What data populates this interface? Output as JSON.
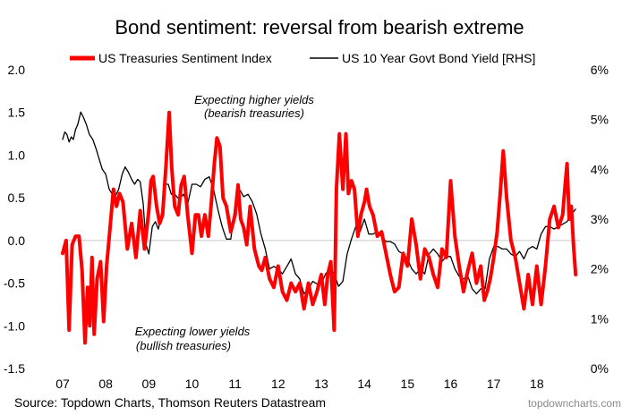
{
  "chart_data": {
    "type": "line",
    "title": "Bond sentiment: reversal from bearish extreme",
    "source": "Source: Topdown Charts, Thomson Reuters Datastream",
    "brand": "topdowncharts.com",
    "legend_position": "top",
    "grid": false,
    "xlim": [
      2007.0,
      2019.0
    ],
    "x_ticks": [
      {
        "label": "07",
        "x": 2007
      },
      {
        "label": "08",
        "x": 2008
      },
      {
        "label": "09",
        "x": 2009
      },
      {
        "label": "10",
        "x": 2010
      },
      {
        "label": "11",
        "x": 2011
      },
      {
        "label": "12",
        "x": 2012
      },
      {
        "label": "13",
        "x": 2013
      },
      {
        "label": "14",
        "x": 2014
      },
      {
        "label": "15",
        "x": 2015
      },
      {
        "label": "16",
        "x": 2016
      },
      {
        "label": "17",
        "x": 2017
      },
      {
        "label": "18",
        "x": 2018
      }
    ],
    "left_axis": {
      "ylim": [
        -1.5,
        2.0
      ],
      "ticks": [
        {
          "label": "2.0",
          "v": 2.0
        },
        {
          "label": "1.5",
          "v": 1.5
        },
        {
          "label": "1.0",
          "v": 1.0
        },
        {
          "label": "0.5",
          "v": 0.5
        },
        {
          "label": "0.0",
          "v": 0.0
        },
        {
          "label": "-0.5",
          "v": -0.5
        },
        {
          "label": "-1.0",
          "v": -1.0
        },
        {
          "label": "-1.5",
          "v": -1.5
        }
      ]
    },
    "right_axis": {
      "ylim": [
        0,
        6
      ],
      "ticks": [
        {
          "label": "6%",
          "v": 6
        },
        {
          "label": "5%",
          "v": 5
        },
        {
          "label": "4%",
          "v": 4
        },
        {
          "label": "3%",
          "v": 3
        },
        {
          "label": "2%",
          "v": 2
        },
        {
          "label": "1%",
          "v": 1
        },
        {
          "label": "0%",
          "v": 0
        }
      ]
    },
    "annotations": [
      {
        "line1": "Expecting higher yields",
        "line2": "(bearish treasuries)"
      },
      {
        "line1": "Expecting lower yields",
        "line2": "(bullish treasuries)"
      }
    ],
    "series": [
      {
        "name": "US Treasuries Sentiment Index",
        "axis": "left",
        "color": "#ff0000",
        "x": [
          2007.0,
          2007.08,
          2007.15,
          2007.22,
          2007.3,
          2007.38,
          2007.45,
          2007.52,
          2007.58,
          2007.63,
          2007.68,
          2007.73,
          2007.8,
          2007.88,
          2007.95,
          2008.02,
          2008.1,
          2008.18,
          2008.25,
          2008.32,
          2008.4,
          2008.5,
          2008.6,
          2008.7,
          2008.8,
          2008.9,
          2009.0,
          2009.05,
          2009.1,
          2009.18,
          2009.25,
          2009.32,
          2009.4,
          2009.47,
          2009.53,
          2009.6,
          2009.68,
          2009.75,
          2009.82,
          2009.9,
          2010.0,
          2010.08,
          2010.15,
          2010.22,
          2010.3,
          2010.38,
          2010.45,
          2010.52,
          2010.58,
          2010.65,
          2010.72,
          2010.8,
          2010.9,
          2011.0,
          2011.07,
          2011.13,
          2011.2,
          2011.27,
          2011.35,
          2011.45,
          2011.55,
          2011.62,
          2011.7,
          2011.8,
          2011.9,
          2012.0,
          2012.1,
          2012.2,
          2012.3,
          2012.4,
          2012.5,
          2012.6,
          2012.7,
          2012.8,
          2012.9,
          2013.0,
          2013.08,
          2013.15,
          2013.22,
          2013.3,
          2013.35,
          2013.42,
          2013.5,
          2013.57,
          2013.63,
          2013.7,
          2013.77,
          2013.85,
          2013.92,
          2014.0,
          2014.05,
          2014.12,
          2014.2,
          2014.3,
          2014.4,
          2014.5,
          2014.6,
          2014.7,
          2014.8,
          2014.9,
          2015.0,
          2015.1,
          2015.2,
          2015.3,
          2015.4,
          2015.5,
          2015.6,
          2015.7,
          2015.8,
          2015.9,
          2016.0,
          2016.1,
          2016.2,
          2016.3,
          2016.4,
          2016.5,
          2016.6,
          2016.7,
          2016.78,
          2016.85,
          2016.92,
          2017.0,
          2017.08,
          2017.15,
          2017.22,
          2017.3,
          2017.4,
          2017.5,
          2017.6,
          2017.7,
          2017.8,
          2017.9,
          2018.0,
          2018.1,
          2018.2,
          2018.3,
          2018.4,
          2018.5,
          2018.6,
          2018.65,
          2018.7,
          2018.75,
          2018.8,
          2018.85,
          2018.9
        ],
        "values": [
          -0.15,
          0.0,
          -1.05,
          -0.05,
          0.05,
          0.05,
          -0.35,
          -1.2,
          -0.55,
          -1.0,
          -0.2,
          -1.1,
          -0.45,
          -0.25,
          -0.95,
          -0.3,
          0.15,
          0.6,
          0.4,
          0.55,
          0.45,
          -0.1,
          0.2,
          -0.2,
          0.35,
          -0.1,
          0.35,
          0.7,
          0.75,
          0.4,
          0.2,
          0.3,
          0.9,
          1.5,
          0.85,
          0.4,
          0.3,
          0.65,
          0.75,
          0.3,
          -0.15,
          0.3,
          0.3,
          0.05,
          0.3,
          0.05,
          0.45,
          0.9,
          1.2,
          1.1,
          0.5,
          0.4,
          0.1,
          0.3,
          0.65,
          0.25,
          0.15,
          -0.05,
          0.4,
          -0.1,
          -0.3,
          -0.35,
          -0.2,
          -0.45,
          -0.55,
          -0.3,
          -0.6,
          -0.7,
          -0.5,
          -0.6,
          -0.5,
          -0.8,
          -0.5,
          -0.75,
          -0.6,
          -0.4,
          -0.75,
          -0.4,
          -0.25,
          -1.05,
          0.6,
          1.25,
          0.6,
          1.25,
          0.55,
          0.7,
          0.6,
          0.05,
          0.3,
          0.45,
          0.6,
          0.4,
          0.3,
          0.05,
          0.1,
          -0.15,
          -0.4,
          -0.6,
          -0.55,
          -0.15,
          -0.3,
          0.25,
          -0.05,
          -0.45,
          -0.1,
          -0.2,
          -0.4,
          -0.55,
          -0.1,
          -0.2,
          0.7,
          0.05,
          -0.3,
          -0.6,
          -0.35,
          -0.15,
          -0.5,
          -0.3,
          -0.7,
          -0.6,
          -0.45,
          -0.2,
          0.1,
          0.55,
          1.05,
          0.5,
          0.0,
          -0.2,
          -0.5,
          -0.8,
          -0.4,
          -0.75,
          -0.3,
          -0.75,
          -0.3,
          0.25,
          0.4,
          0.15,
          0.3,
          0.6,
          0.9,
          0.25,
          0.4,
          -0.05,
          -0.4
        ]
      },
      {
        "name": "US 10 Year Govt Bond Yield [RHS]",
        "axis": "right",
        "color": "#000000",
        "x": [
          2007.0,
          2007.05,
          2007.1,
          2007.15,
          2007.2,
          2007.25,
          2007.3,
          2007.35,
          2007.42,
          2007.48,
          2007.55,
          2007.62,
          2007.7,
          2007.78,
          2007.85,
          2007.92,
          2008.0,
          2008.08,
          2008.15,
          2008.22,
          2008.3,
          2008.38,
          2008.45,
          2008.52,
          2008.6,
          2008.67,
          2008.74,
          2008.8,
          2008.87,
          2008.93,
          2009.0,
          2009.08,
          2009.15,
          2009.22,
          2009.3,
          2009.38,
          2009.45,
          2009.52,
          2009.6,
          2009.7,
          2009.8,
          2009.9,
          2010.0,
          2010.1,
          2010.2,
          2010.3,
          2010.4,
          2010.5,
          2010.6,
          2010.7,
          2010.8,
          2010.9,
          2011.0,
          2011.1,
          2011.2,
          2011.3,
          2011.4,
          2011.5,
          2011.6,
          2011.7,
          2011.8,
          2011.9,
          2012.0,
          2012.1,
          2012.2,
          2012.3,
          2012.4,
          2012.5,
          2012.6,
          2012.7,
          2012.8,
          2012.9,
          2013.0,
          2013.1,
          2013.2,
          2013.3,
          2013.4,
          2013.5,
          2013.6,
          2013.7,
          2013.8,
          2013.9,
          2014.0,
          2014.1,
          2014.2,
          2014.3,
          2014.4,
          2014.5,
          2014.6,
          2014.7,
          2014.8,
          2014.9,
          2015.0,
          2015.1,
          2015.2,
          2015.3,
          2015.4,
          2015.5,
          2015.6,
          2015.7,
          2015.8,
          2015.9,
          2016.0,
          2016.1,
          2016.2,
          2016.3,
          2016.4,
          2016.5,
          2016.6,
          2016.7,
          2016.8,
          2016.9,
          2017.0,
          2017.1,
          2017.2,
          2017.3,
          2017.4,
          2017.5,
          2017.6,
          2017.7,
          2017.8,
          2017.9,
          2018.0,
          2018.1,
          2018.2,
          2018.3,
          2018.4,
          2018.5,
          2018.6,
          2018.7,
          2018.8,
          2018.9
        ],
        "values": [
          4.6,
          4.75,
          4.7,
          4.55,
          4.65,
          4.6,
          4.8,
          4.9,
          5.15,
          5.05,
          4.9,
          4.7,
          4.6,
          4.4,
          4.2,
          4.0,
          3.9,
          3.6,
          3.5,
          3.45,
          3.6,
          3.9,
          4.05,
          3.95,
          3.8,
          3.7,
          3.8,
          3.75,
          3.3,
          2.5,
          2.3,
          2.85,
          2.95,
          2.8,
          3.1,
          3.7,
          3.7,
          3.5,
          3.5,
          3.4,
          3.5,
          3.3,
          3.7,
          3.7,
          3.65,
          3.8,
          3.85,
          3.6,
          3.2,
          2.85,
          2.6,
          2.6,
          3.3,
          3.6,
          3.45,
          3.5,
          3.35,
          3.1,
          2.7,
          2.4,
          2.0,
          2.05,
          2.0,
          1.9,
          2.05,
          2.2,
          1.9,
          1.8,
          1.5,
          1.6,
          1.75,
          1.7,
          1.7,
          1.9,
          2.0,
          1.9,
          1.65,
          1.75,
          2.3,
          2.6,
          2.85,
          2.75,
          3.0,
          2.7,
          2.7,
          2.75,
          2.65,
          2.55,
          2.55,
          2.5,
          2.35,
          2.3,
          2.2,
          2.0,
          1.9,
          2.0,
          1.9,
          2.3,
          2.4,
          2.3,
          2.15,
          2.25,
          2.25,
          2.0,
          1.85,
          1.8,
          1.85,
          1.6,
          1.5,
          1.6,
          1.6,
          2.2,
          2.45,
          2.45,
          2.4,
          2.4,
          2.3,
          2.25,
          2.35,
          2.2,
          2.4,
          2.45,
          2.4,
          2.7,
          2.85,
          2.85,
          2.8,
          2.85,
          2.9,
          2.95,
          3.1,
          3.2
        ]
      }
    ]
  }
}
